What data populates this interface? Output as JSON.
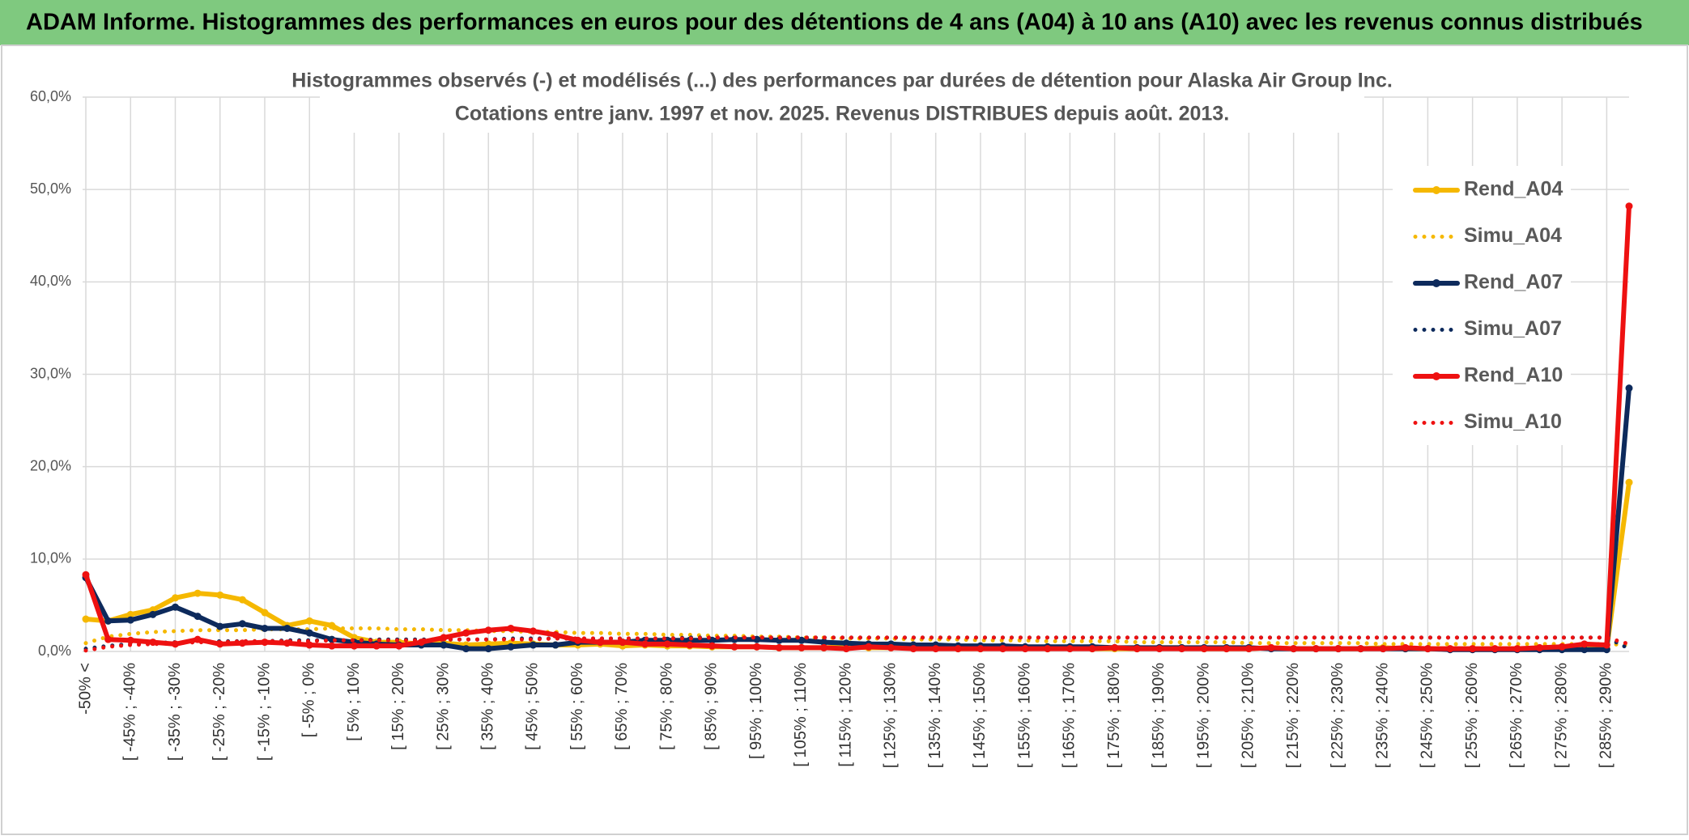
{
  "header": "ADAM Informe. Histogrammes des performances en euros pour des détentions de 4 ans (A04) à 10 ans (A10) avec les revenus connus distribués",
  "chart_data": {
    "type": "line",
    "title": "Histogrammes observés (-) et modélisés (...) des performances par durées de détention pour Alaska Air Group Inc.",
    "subtitle": "Cotations entre janv. 1997 et nov. 2025. Revenus DISTRIBUES depuis août. 2013.",
    "categories": [
      "-50% <",
      null,
      "[ -45% ; -40%",
      null,
      "[ -35% ; -30%",
      null,
      "[ -25% ; -20%",
      null,
      "[ -15% ; -10%",
      null,
      "[ -5% ; 0%",
      null,
      "[ 5% ; 10%",
      null,
      "[ 15% ; 20%",
      null,
      "[ 25% ; 30%",
      null,
      "[ 35% ; 40%",
      null,
      "[ 45% ; 50%",
      null,
      "[ 55% ; 60%",
      null,
      "[ 65% ; 70%",
      null,
      "[ 75% ; 80%",
      null,
      "[ 85% ; 90%",
      null,
      "[ 95% ; 100%",
      null,
      "[ 105% ; 110%",
      null,
      "[ 115% ; 120%",
      null,
      "[ 125% ; 130%",
      null,
      "[ 135% ; 140%",
      null,
      "[ 145% ; 150%",
      null,
      "[ 155% ; 160%",
      null,
      "[ 165% ; 170%",
      null,
      "[ 175% ; 180%",
      null,
      "[ 185% ; 190%",
      null,
      "[ 195% ; 200%",
      null,
      "[ 205% ; 210%",
      null,
      "[ 215% ; 220%",
      null,
      "[ 225% ; 230%",
      null,
      "[ 235% ; 240%",
      null,
      "[ 245% ; 250%",
      null,
      "[ 255% ; 260%",
      null,
      "[ 265% ; 270%",
      null,
      "[ 275% ; 280%",
      null,
      "[ 285% ; 290%",
      null
    ],
    "series": [
      {
        "name": "Rend_A04",
        "color": "#f5b800",
        "style": "solid",
        "values": [
          3.5,
          3.3,
          4.0,
          4.5,
          5.8,
          6.3,
          6.1,
          5.6,
          4.2,
          2.8,
          3.3,
          2.8,
          1.5,
          1.0,
          1.0,
          0.8,
          0.9,
          0.7,
          0.8,
          0.9,
          0.8,
          0.7,
          0.7,
          0.8,
          0.6,
          0.7,
          0.6,
          0.6,
          0.5,
          0.5,
          0.5,
          0.4,
          0.4,
          0.4,
          0.5,
          0.4,
          0.4,
          0.4,
          0.4,
          0.3,
          0.3,
          0.4,
          0.4,
          0.3,
          0.4,
          0.3,
          0.3,
          0.3,
          0.4,
          0.4,
          0.3,
          0.3,
          0.3,
          0.4,
          0.3,
          0.3,
          0.3,
          0.3,
          0.4,
          0.3,
          0.3,
          0.3,
          0.3,
          0.3,
          0.3,
          0.3,
          0.3,
          0.3,
          0.3,
          18.3
        ]
      },
      {
        "name": "Simu_A04",
        "color": "#f5b800",
        "style": "dotted",
        "values": [
          0.9,
          1.6,
          1.9,
          2.1,
          2.2,
          2.3,
          2.3,
          2.3,
          2.4,
          2.4,
          2.4,
          2.5,
          2.5,
          2.5,
          2.4,
          2.4,
          2.3,
          2.3,
          2.2,
          2.2,
          2.1,
          2.1,
          2.0,
          2.0,
          1.9,
          1.9,
          1.8,
          1.8,
          1.7,
          1.7,
          1.6,
          1.6,
          1.5,
          1.5,
          1.4,
          1.4,
          1.4,
          1.3,
          1.3,
          1.3,
          1.2,
          1.2,
          1.2,
          1.1,
          1.1,
          1.1,
          1.1,
          1.0,
          1.0,
          1.0,
          1.0,
          1.0,
          0.9,
          0.9,
          0.9,
          0.9,
          0.9,
          0.9,
          0.8,
          0.8,
          0.8,
          0.8,
          0.8,
          0.8,
          0.8,
          0.8,
          0.8,
          0.8,
          0.8,
          0.7
        ]
      },
      {
        "name": "Rend_A07",
        "color": "#0d2a5c",
        "style": "solid",
        "values": [
          8.0,
          3.3,
          3.4,
          4.0,
          4.8,
          3.8,
          2.7,
          3.0,
          2.5,
          2.5,
          2.0,
          1.3,
          1.0,
          0.8,
          0.7,
          0.7,
          0.7,
          0.3,
          0.3,
          0.5,
          0.7,
          0.7,
          1.0,
          1.0,
          1.0,
          1.2,
          1.2,
          1.2,
          1.2,
          1.3,
          1.3,
          1.2,
          1.2,
          1.0,
          0.9,
          0.8,
          0.8,
          0.7,
          0.7,
          0.6,
          0.6,
          0.6,
          0.5,
          0.5,
          0.5,
          0.5,
          0.4,
          0.4,
          0.4,
          0.4,
          0.4,
          0.4,
          0.4,
          0.3,
          0.3,
          0.3,
          0.3,
          0.3,
          0.3,
          0.3,
          0.3,
          0.2,
          0.2,
          0.2,
          0.2,
          0.2,
          0.2,
          0.2,
          0.2,
          28.5
        ]
      },
      {
        "name": "Simu_A07",
        "color": "#0d2a5c",
        "style": "dotted",
        "values": [
          0.3,
          0.6,
          0.8,
          0.9,
          1.0,
          1.0,
          1.1,
          1.1,
          1.1,
          1.2,
          1.2,
          1.2,
          1.2,
          1.3,
          1.3,
          1.3,
          1.3,
          1.3,
          1.3,
          1.4,
          1.4,
          1.4,
          1.4,
          1.4,
          1.4,
          1.4,
          1.4,
          1.5,
          1.5,
          1.5,
          1.5,
          1.5,
          1.5,
          1.5,
          1.5,
          1.5,
          1.5,
          1.5,
          1.5,
          1.5,
          1.5,
          1.5,
          1.5,
          1.5,
          1.5,
          1.5,
          1.5,
          1.5,
          1.5,
          1.5,
          1.5,
          1.5,
          1.5,
          1.5,
          1.5,
          1.5,
          1.5,
          1.5,
          1.5,
          1.5,
          1.5,
          1.5,
          1.5,
          1.5,
          1.5,
          1.5,
          1.5,
          1.5,
          1.5,
          0.3
        ]
      },
      {
        "name": "Rend_A10",
        "color": "#ee1111",
        "style": "solid",
        "values": [
          8.3,
          1.3,
          1.2,
          1.0,
          0.8,
          1.3,
          0.8,
          0.9,
          1.0,
          0.9,
          0.7,
          0.6,
          0.6,
          0.6,
          0.6,
          1.0,
          1.5,
          2.0,
          2.3,
          2.5,
          2.2,
          1.8,
          1.2,
          1.0,
          1.0,
          0.8,
          0.8,
          0.7,
          0.6,
          0.5,
          0.5,
          0.4,
          0.4,
          0.4,
          0.3,
          0.5,
          0.4,
          0.3,
          0.3,
          0.3,
          0.3,
          0.3,
          0.3,
          0.3,
          0.3,
          0.3,
          0.4,
          0.3,
          0.3,
          0.3,
          0.3,
          0.3,
          0.3,
          0.4,
          0.3,
          0.3,
          0.3,
          0.3,
          0.3,
          0.4,
          0.3,
          0.3,
          0.3,
          0.3,
          0.3,
          0.4,
          0.5,
          0.8,
          0.7,
          48.2
        ]
      },
      {
        "name": "Simu_A10",
        "color": "#ee1111",
        "style": "dotted",
        "values": [
          0.1,
          0.5,
          0.7,
          0.8,
          0.9,
          1.0,
          1.0,
          1.1,
          1.1,
          1.1,
          1.1,
          1.2,
          1.2,
          1.2,
          1.2,
          1.2,
          1.3,
          1.3,
          1.3,
          1.3,
          1.3,
          1.4,
          1.4,
          1.4,
          1.4,
          1.4,
          1.4,
          1.4,
          1.5,
          1.5,
          1.5,
          1.5,
          1.5,
          1.5,
          1.5,
          1.5,
          1.5,
          1.5,
          1.5,
          1.5,
          1.5,
          1.5,
          1.5,
          1.5,
          1.5,
          1.5,
          1.5,
          1.5,
          1.5,
          1.5,
          1.5,
          1.5,
          1.5,
          1.5,
          1.5,
          1.5,
          1.5,
          1.5,
          1.5,
          1.5,
          1.5,
          1.5,
          1.5,
          1.5,
          1.5,
          1.5,
          1.5,
          1.5,
          1.5,
          0.8
        ]
      }
    ],
    "ylim": [
      0,
      60
    ],
    "yticks": [
      {
        "value": 0,
        "label": "0,0%"
      },
      {
        "value": 10,
        "label": "10,0%"
      },
      {
        "value": 20,
        "label": "20,0%"
      },
      {
        "value": 30,
        "label": "30,0%"
      },
      {
        "value": 40,
        "label": "40,0%"
      },
      {
        "value": 50,
        "label": "50,0%"
      },
      {
        "value": 60,
        "label": "60,0%"
      }
    ],
    "grid": true,
    "legend": "right"
  }
}
